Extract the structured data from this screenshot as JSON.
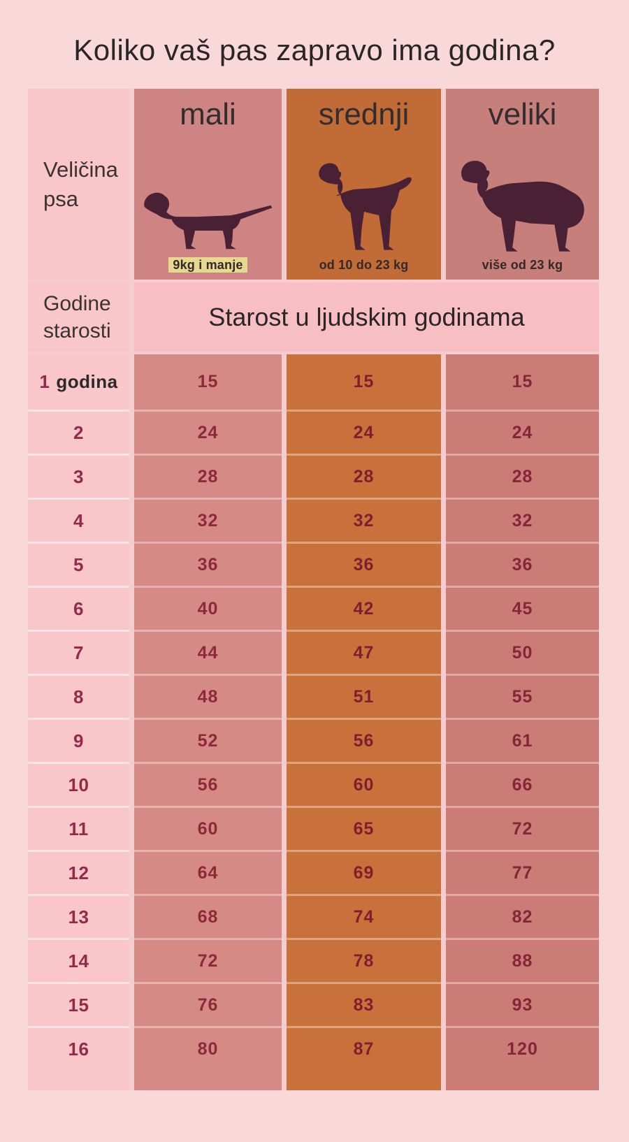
{
  "title": "Koliko vaš pas zapravo ima godina?",
  "table": {
    "corner_label": "Veličina psa",
    "age_header_label": "Godine starosti",
    "span_header": "Starost u ljudskim godinama",
    "first_row_age_suffix": "godina",
    "columns": [
      {
        "label": "mali",
        "weight": "9kg i manje",
        "dog_icon": "dachshund-icon",
        "color": "#d68a85"
      },
      {
        "label": "srednji",
        "weight": "od 10 do 23 kg",
        "dog_icon": "spaniel-icon",
        "color": "#c8713a"
      },
      {
        "label": "veliki",
        "weight": "više od 23 kg",
        "dog_icon": "large-dog-icon",
        "color": "#cc7c76"
      }
    ]
  },
  "chart_data": {
    "type": "table",
    "title": "Koliko vaš pas zapravo ima godina?",
    "xlabel": "Godine starosti",
    "ylabel": "Starost u ljudskim godinama",
    "x": [
      1,
      2,
      3,
      4,
      5,
      6,
      7,
      8,
      9,
      10,
      11,
      12,
      13,
      14,
      15,
      16
    ],
    "series": [
      {
        "name": "mali (9kg i manje)",
        "values": [
          15,
          24,
          28,
          32,
          36,
          40,
          44,
          48,
          52,
          56,
          60,
          64,
          68,
          72,
          76,
          80
        ]
      },
      {
        "name": "srednji (od 10 do 23 kg)",
        "values": [
          15,
          24,
          28,
          32,
          36,
          42,
          47,
          51,
          56,
          60,
          65,
          69,
          74,
          78,
          83,
          87
        ]
      },
      {
        "name": "veliki (više od 23 kg)",
        "values": [
          15,
          24,
          28,
          32,
          36,
          45,
          50,
          55,
          61,
          66,
          72,
          77,
          82,
          88,
          93,
          120
        ]
      }
    ]
  },
  "colors": {
    "page_bg": "#f9d8da",
    "label_col_bg": "#f9c6c9",
    "band_bg": "#f7bec4",
    "mali_bg": "#d68a85",
    "srednji_bg": "#c8713a",
    "veliki_bg": "#cc7c76",
    "number_text": "#8b2138",
    "age_text": "#932a4a",
    "heading_text": "#2e2a2b",
    "silhouette": "#4a2134",
    "weight_highlight": "#e6d98f"
  }
}
